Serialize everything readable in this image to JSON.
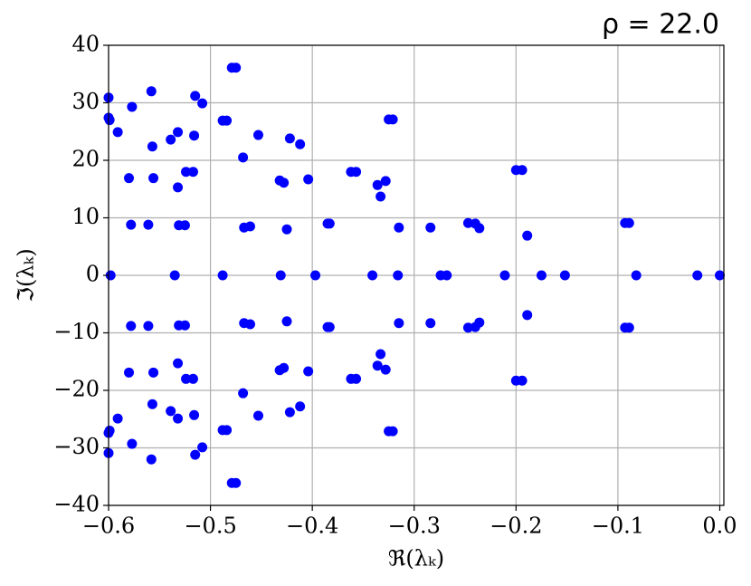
{
  "chart_data": {
    "type": "scatter",
    "title": "ρ = 22.0",
    "x_label": "ℜ(λₖ)",
    "y_label": "ℑ(λₖ)",
    "color": "#0000ff",
    "grid": true,
    "xlim": [
      -0.6,
      0.004
    ],
    "ylim": [
      -40,
      40
    ],
    "xticks": [
      {
        "value": -0.6,
        "label": "−0.6"
      },
      {
        "value": -0.5,
        "label": "−0.5"
      },
      {
        "value": -0.4,
        "label": "−0.4"
      },
      {
        "value": -0.3,
        "label": "−0.3"
      },
      {
        "value": -0.2,
        "label": "−0.2"
      },
      {
        "value": -0.1,
        "label": "−0.1"
      },
      {
        "value": 0,
        "label": "0.0"
      }
    ],
    "yticks": [
      {
        "value": -40,
        "label": "−40"
      },
      {
        "value": -30,
        "label": "−30"
      },
      {
        "value": -20,
        "label": "−20"
      },
      {
        "value": -10,
        "label": "−10"
      },
      0,
      10,
      20,
      30,
      40
    ],
    "x": [
      -0.6,
      -0.6,
      -0.599,
      -0.591,
      -0.577,
      -0.58,
      -0.578,
      -0.558,
      -0.557,
      -0.556,
      -0.561,
      -0.539,
      -0.532,
      -0.532,
      -0.531,
      -0.525,
      -0.524,
      -0.517,
      -0.515,
      -0.516,
      -0.508,
      -0.488,
      -0.484,
      -0.479,
      -0.475,
      -0.468,
      -0.467,
      -0.461,
      -0.453,
      -0.432,
      -0.428,
      -0.422,
      -0.425,
      -0.412,
      -0.404,
      -0.385,
      -0.383,
      -0.362,
      -0.357,
      -0.336,
      -0.333,
      -0.328,
      -0.325,
      -0.321,
      -0.315,
      -0.284,
      -0.247,
      -0.24,
      -0.236,
      -0.2,
      -0.194,
      -0.189,
      -0.093,
      -0.089,
      -0.6,
      -0.6,
      -0.599,
      -0.591,
      -0.577,
      -0.58,
      -0.578,
      -0.558,
      -0.557,
      -0.556,
      -0.561,
      -0.539,
      -0.532,
      -0.532,
      -0.531,
      -0.525,
      -0.524,
      -0.517,
      -0.515,
      -0.516,
      -0.508,
      -0.488,
      -0.484,
      -0.479,
      -0.475,
      -0.468,
      -0.467,
      -0.461,
      -0.453,
      -0.432,
      -0.428,
      -0.422,
      -0.425,
      -0.412,
      -0.404,
      -0.385,
      -0.383,
      -0.362,
      -0.357,
      -0.336,
      -0.333,
      -0.328,
      -0.325,
      -0.321,
      -0.315,
      -0.284,
      -0.247,
      -0.24,
      -0.236,
      -0.2,
      -0.194,
      -0.189,
      -0.093,
      -0.089,
      -0.598,
      -0.535,
      -0.488,
      -0.431,
      -0.397,
      -0.341,
      -0.316,
      -0.274,
      -0.268,
      -0.211,
      -0.175,
      -0.152,
      -0.082,
      -0.022,
      0.0
    ],
    "y": [
      30.9,
      27.4,
      27.0,
      24.9,
      29.3,
      16.9,
      8.8,
      32.0,
      22.4,
      16.9,
      8.8,
      23.6,
      24.9,
      15.3,
      8.7,
      8.7,
      18.0,
      18.0,
      31.2,
      24.3,
      29.9,
      26.9,
      26.9,
      36.1,
      36.1,
      20.5,
      8.3,
      8.5,
      24.4,
      16.5,
      16.1,
      23.8,
      8.0,
      22.8,
      16.7,
      9.0,
      9.0,
      18.0,
      18.0,
      15.7,
      13.7,
      16.4,
      27.1,
      27.1,
      8.3,
      8.3,
      9.1,
      9.0,
      8.2,
      18.3,
      18.3,
      6.9,
      9.1,
      9.1,
      -30.9,
      -27.4,
      -27.0,
      -24.9,
      -29.3,
      -16.9,
      -8.8,
      -32.0,
      -22.4,
      -16.9,
      -8.8,
      -23.6,
      -24.9,
      -15.3,
      -8.7,
      -8.7,
      -18.0,
      -18.0,
      -31.2,
      -24.3,
      -29.9,
      -26.9,
      -26.9,
      -36.1,
      -36.1,
      -20.5,
      -8.3,
      -8.5,
      -24.4,
      -16.5,
      -16.1,
      -23.8,
      -8.0,
      -22.8,
      -16.7,
      -9.0,
      -9.0,
      -18.0,
      -18.0,
      -15.7,
      -13.7,
      -16.4,
      -27.1,
      -27.1,
      -8.3,
      -8.3,
      -9.1,
      -9.0,
      -8.2,
      -18.3,
      -18.3,
      -6.9,
      -9.1,
      -9.1,
      0,
      0,
      0,
      0,
      0,
      0,
      0,
      0,
      0,
      0,
      0,
      0,
      0,
      0,
      0
    ]
  }
}
